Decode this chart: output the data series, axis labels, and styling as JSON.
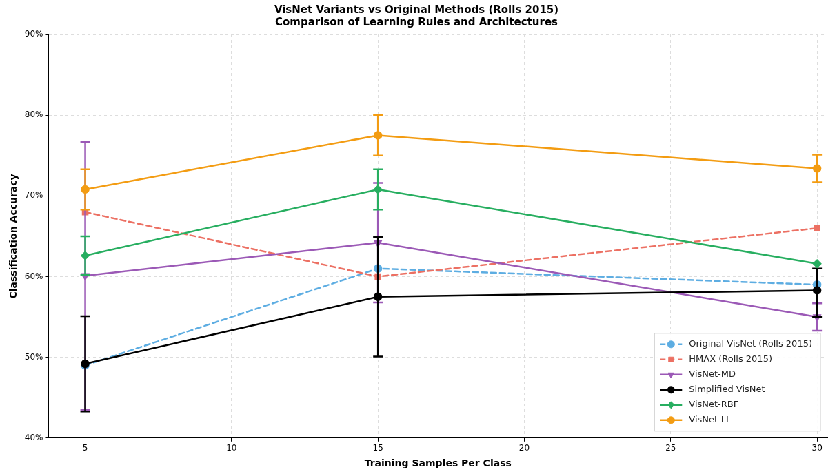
{
  "chart_data": {
    "type": "line",
    "title": "VisNet Variants vs Original Methods (Rolls 2015)\nComparison of Learning Rules and Architectures",
    "xlabel": "Training Samples Per Class",
    "ylabel": "Classification Accuracy",
    "x": [
      5,
      15,
      30
    ],
    "xlim": [
      3.75,
      30.35
    ],
    "xticks": [
      5,
      10,
      15,
      20,
      25,
      30
    ],
    "ylim": [
      40,
      90
    ],
    "yticks": [
      {
        "value": 40,
        "label": "40%"
      },
      {
        "value": 50,
        "label": "50%"
      },
      {
        "value": 60,
        "label": "60%"
      },
      {
        "value": 70,
        "label": "70%"
      },
      {
        "value": 80,
        "label": "80%"
      },
      {
        "value": 90,
        "label": "90%"
      }
    ],
    "grid": true,
    "legend": "bottom right",
    "series": [
      {
        "name": "Original VisNet (Rolls 2015)",
        "color": "#5dade2",
        "values": [
          49.0,
          61.0,
          59.0
        ],
        "marker": "circle",
        "line_style": "dashed"
      },
      {
        "name": "HMAX (Rolls 2015)",
        "color": "#ec7063",
        "values": [
          68.0,
          60.0,
          66.0
        ],
        "marker": "square",
        "line_style": "dashed"
      },
      {
        "name": "VisNet-MD",
        "color": "#9b59b6",
        "values": [
          60.1,
          64.2,
          55.0
        ],
        "errors": [
          16.6,
          7.4,
          1.7
        ],
        "marker": "triangle",
        "line_style": "solid"
      },
      {
        "name": "Simplified VisNet",
        "color": "#000000",
        "values": [
          49.2,
          57.5,
          58.3
        ],
        "errors": [
          5.9,
          7.4,
          [
            55.0,
            61.0
          ]
        ],
        "marker": "circle",
        "line_style": "solid"
      },
      {
        "name": "VisNet-RBF",
        "color": "#27ae60",
        "values": [
          62.6,
          70.8,
          61.6
        ],
        "errors": [
          2.4,
          2.5,
          null
        ],
        "marker": "diamond",
        "line_style": "solid"
      },
      {
        "name": "VisNet-LI",
        "color": "#f39c12",
        "values": [
          70.8,
          77.5,
          73.4
        ],
        "errors": [
          2.5,
          2.5,
          1.7
        ],
        "marker": "circle",
        "line_style": "solid"
      }
    ]
  }
}
